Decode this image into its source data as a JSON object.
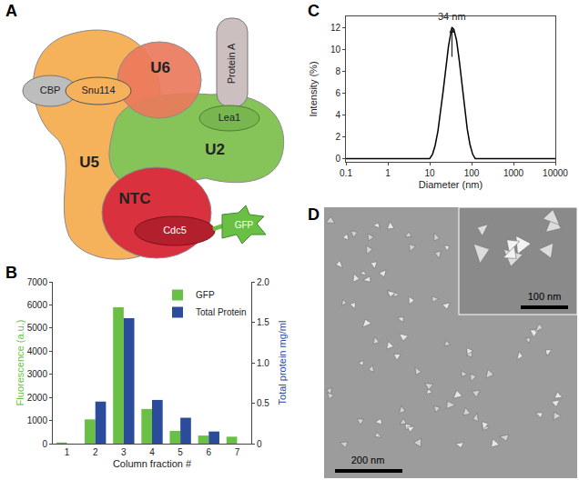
{
  "panels": {
    "A": {
      "label": "A",
      "nodes": [
        {
          "label": "U5",
          "color": "#f6b15b"
        },
        {
          "label": "U2",
          "color": "#86c45a"
        },
        {
          "label": "U6",
          "color": "#ea7a5c"
        },
        {
          "label": "NTC",
          "color": "#d9313d"
        },
        {
          "label": "CBP",
          "color": "#bdbdbd"
        },
        {
          "label": "Snu114",
          "color": "#f6b15b"
        },
        {
          "label": "Protein A",
          "color": "#cbbfbf"
        },
        {
          "label": "Lea1",
          "color": "#78b64f"
        },
        {
          "label": "Cdc5",
          "color": "#b21f2d"
        },
        {
          "label": "GFP",
          "color": "#6abf45"
        }
      ]
    },
    "D": {
      "label": "D",
      "scale_bar": "200 nm",
      "inset_scale_bar": "100 nm"
    }
  },
  "chart_data": [
    {
      "panel": "B",
      "type": "bar",
      "x_label": "Column fraction #",
      "y_label": "Fluorescence (a.u.)",
      "y2_label": "Total protein mg/ml",
      "categories": [
        "1",
        "2",
        "3",
        "4",
        "5",
        "6",
        "7"
      ],
      "series": [
        {
          "name": "GFP",
          "color": "#6abf45",
          "values": [
            50,
            1050,
            5900,
            1500,
            550,
            350,
            300
          ]
        },
        {
          "name": "Total Protein",
          "color": "#2b4b9b",
          "axis": "y2",
          "values": [
            null,
            0.52,
            1.55,
            0.54,
            0.32,
            0.15,
            null
          ]
        }
      ],
      "ylim": [
        0,
        7000
      ],
      "yticks": [
        0,
        1000,
        2000,
        3000,
        4000,
        5000,
        6000,
        7000
      ],
      "y2lim": [
        0,
        2
      ],
      "y2ticks": [
        0,
        0.5,
        {
          "value": 1,
          "label": "1.0"
        },
        1.5,
        {
          "value": 2,
          "label": "2.0"
        }
      ],
      "legend": "top right",
      "grid": false
    },
    {
      "panel": "C",
      "type": "line",
      "x_label": "Diameter (nm)",
      "y_label": "Intensity (%)",
      "x": [
        0.1,
        1,
        10,
        11.7,
        13.5,
        15.7,
        18.2,
        21,
        24.4,
        28.2,
        32.7,
        34,
        37.8,
        43.8,
        50.7,
        58.8,
        68.1,
        78.8,
        91.3,
        106,
        122,
        1000,
        10000
      ],
      "values": [
        0,
        0,
        0,
        0.4,
        1.2,
        2.5,
        4.2,
        6.2,
        8.3,
        10.3,
        11.7,
        12,
        11.8,
        10.8,
        9,
        6.8,
        4.6,
        2.7,
        1.3,
        0.4,
        0,
        0,
        0
      ],
      "color": "#000000",
      "log": "x",
      "xlim": [
        0.1,
        10000
      ],
      "xticks": [
        0.1,
        1,
        10,
        100,
        1000,
        10000
      ],
      "ylim": [
        -0.3,
        13
      ],
      "yticks": [
        0,
        2,
        4,
        6,
        8,
        10,
        12
      ],
      "annotations": [
        {
          "text": "34 nm",
          "x": 34,
          "y": 12
        }
      ],
      "grid": false
    }
  ]
}
